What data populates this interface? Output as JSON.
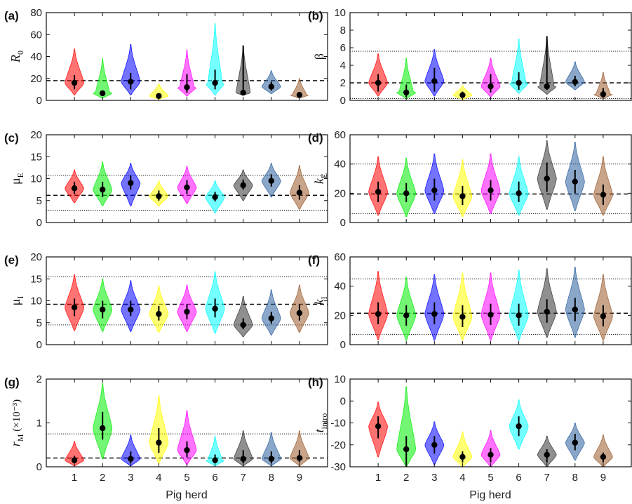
{
  "figure": {
    "xlabel": "Pig herd",
    "herd_colors": [
      "#ff0000",
      "#00ee00",
      "#0000ff",
      "#ffff00",
      "#ff00ff",
      "#00ffff",
      "#333333",
      "#2a5f9e",
      "#9a5a2a"
    ]
  },
  "chart_data": [
    {
      "panel": "(a)",
      "type": "violin",
      "ylabel": "R",
      "ylabel_sub": "0",
      "categories": [
        "1",
        "2",
        "3",
        "4",
        "5",
        "6",
        "7",
        "8",
        "9"
      ],
      "yticks": [
        0,
        20,
        40,
        60,
        80
      ],
      "ylim": [
        0,
        80
      ],
      "median": [
        16,
        6.5,
        17,
        4,
        12,
        16,
        7,
        12.5,
        5
      ],
      "ci_low": [
        10,
        4,
        10,
        2,
        7,
        10,
        6,
        9,
        3
      ],
      "ci_high": [
        23,
        9,
        25,
        6,
        24,
        28,
        50,
        17,
        7
      ],
      "vmin": [
        5,
        2,
        5,
        1,
        4,
        5,
        5,
        6,
        2
      ],
      "vmax": [
        47,
        38,
        51,
        15,
        46,
        70,
        50,
        27,
        20
      ],
      "dashed": [
        18
      ],
      "dotted": []
    },
    {
      "panel": "(b)",
      "type": "violin",
      "ylabel": "β",
      "ylabel_sub": "",
      "categories": [
        "1",
        "2",
        "3",
        "4",
        "5",
        "6",
        "7",
        "8",
        "9"
      ],
      "yticks": [
        0,
        2,
        4,
        6,
        8,
        10
      ],
      "ylim": [
        0,
        10
      ],
      "median": [
        2,
        0.9,
        2.2,
        0.6,
        1.6,
        2,
        1.6,
        2.1,
        0.7
      ],
      "ci_low": [
        1,
        0.4,
        1,
        0.3,
        0.9,
        1.2,
        1.2,
        1.6,
        0.3
      ],
      "ci_high": [
        3,
        1.8,
        3.7,
        1,
        3,
        3.2,
        7.3,
        2.8,
        1.4
      ],
      "vmin": [
        0.5,
        0.2,
        0.5,
        0.1,
        0.4,
        0.8,
        0.7,
        1.2,
        0.2
      ],
      "vmax": [
        5.3,
        4.8,
        5.8,
        1.7,
        4.8,
        7,
        7.3,
        4.4,
        3.2
      ],
      "dashed": [
        2
      ],
      "dotted": [
        5.6,
        0.2
      ]
    },
    {
      "panel": "(c)",
      "type": "violin",
      "ylabel": "μ",
      "ylabel_sub": "E",
      "categories": [
        "1",
        "2",
        "3",
        "4",
        "5",
        "6",
        "7",
        "8",
        "9"
      ],
      "yticks": [
        0,
        5,
        10,
        15,
        20
      ],
      "ylim": [
        0,
        20
      ],
      "median": [
        7.8,
        7.5,
        9,
        6,
        8,
        5.8,
        8.5,
        9.5,
        6.8
      ],
      "ci_low": [
        6.5,
        5.8,
        7.5,
        5,
        6.5,
        4.8,
        7.5,
        8.2,
        5.2
      ],
      "ci_high": [
        9.3,
        9.3,
        10.7,
        7.3,
        9.7,
        7,
        9.8,
        11,
        8.5
      ],
      "vmin": [
        4.5,
        3.8,
        3.8,
        3.8,
        4.3,
        2.2,
        5,
        5.8,
        3
      ],
      "vmax": [
        12,
        13.8,
        13.5,
        9.5,
        12.8,
        9.5,
        12,
        13.5,
        13
      ],
      "dashed": [
        6.2
      ],
      "dotted": [
        10.8,
        2.8
      ]
    },
    {
      "panel": "(d)",
      "type": "violin",
      "ylabel": "k",
      "ylabel_sub": "E",
      "categories": [
        "1",
        "2",
        "3",
        "4",
        "5",
        "6",
        "7",
        "8",
        "9"
      ],
      "yticks": [
        0,
        20,
        40,
        60
      ],
      "ylim": [
        0,
        60
      ],
      "median": [
        21,
        20,
        22,
        18,
        22,
        20,
        30,
        28,
        19
      ],
      "ci_low": [
        14,
        14,
        15,
        12,
        15,
        14,
        21,
        20,
        12
      ],
      "ci_high": [
        28,
        27,
        30,
        25,
        29,
        28,
        41,
        36,
        26
      ],
      "vmin": [
        5,
        4,
        6,
        4,
        6,
        5,
        9,
        8,
        5
      ],
      "vmax": [
        45,
        44,
        47,
        43,
        47,
        45,
        56,
        55,
        45
      ],
      "dashed": [
        19.5
      ],
      "dotted": [
        40,
        6
      ]
    },
    {
      "panel": "(e)",
      "type": "violin",
      "ylabel": "μ",
      "ylabel_sub": "I",
      "categories": [
        "1",
        "2",
        "3",
        "4",
        "5",
        "6",
        "7",
        "8",
        "9"
      ],
      "yticks": [
        0,
        5,
        10,
        15,
        20
      ],
      "ylim": [
        0,
        20
      ],
      "median": [
        8.5,
        8,
        8,
        7,
        7.5,
        8.2,
        4.5,
        6,
        7.2
      ],
      "ci_low": [
        6.5,
        6,
        6.5,
        5.5,
        5.8,
        6.2,
        3.5,
        4.8,
        5.5
      ],
      "ci_high": [
        10.5,
        10,
        10,
        8.8,
        9.2,
        10.5,
        6,
        7.5,
        9.2
      ],
      "vmin": [
        3.2,
        3,
        3,
        2.8,
        3,
        2.6,
        1.8,
        2.2,
        2.8
      ],
      "vmax": [
        16,
        15,
        14.6,
        13.4,
        13.6,
        16.6,
        11,
        12.5,
        13.6
      ],
      "dashed": [
        9.2
      ],
      "dotted": [
        15.5,
        4.5
      ]
    },
    {
      "panel": "(f)",
      "type": "violin",
      "ylabel": "k",
      "ylabel_sub": "I",
      "categories": [
        "1",
        "2",
        "3",
        "4",
        "5",
        "6",
        "7",
        "8",
        "9"
      ],
      "yticks": [
        0,
        20,
        40,
        60
      ],
      "ylim": [
        0,
        60
      ],
      "median": [
        21,
        20,
        21,
        19,
        20.5,
        20,
        22.5,
        24,
        19.5
      ],
      "ci_low": [
        14,
        13,
        14,
        12,
        13.5,
        13,
        15,
        16,
        12.5
      ],
      "ci_high": [
        29,
        27,
        29,
        27,
        28,
        28,
        31,
        32,
        27
      ],
      "vmin": [
        3.5,
        3,
        3,
        3,
        3,
        3,
        5,
        5,
        3
      ],
      "vmax": [
        50,
        46,
        48,
        49,
        49,
        51,
        52,
        53,
        48
      ],
      "dashed": [
        21.5
      ],
      "dotted": [
        45,
        7
      ]
    },
    {
      "panel": "(g)",
      "type": "violin",
      "ylabel": "r",
      "ylabel_sub": "M",
      "ylabel_extra": "(×10⁻³)",
      "categories": [
        "1",
        "2",
        "3",
        "4",
        "5",
        "6",
        "7",
        "8",
        "9"
      ],
      "yticks": [
        0,
        1,
        2
      ],
      "ylim": [
        0,
        2
      ],
      "median": [
        0.15,
        0.88,
        0.18,
        0.55,
        0.38,
        0.15,
        0.18,
        0.18,
        0.2
      ],
      "ci_low": [
        0.08,
        0.62,
        0.08,
        0.32,
        0.22,
        0.08,
        0.08,
        0.08,
        0.1
      ],
      "ci_high": [
        0.25,
        1.25,
        0.35,
        0.88,
        0.58,
        0.28,
        0.38,
        0.35,
        0.38
      ],
      "vmin": [
        0.02,
        0.18,
        0.02,
        0.08,
        0.05,
        0.02,
        0.02,
        0.02,
        0.02
      ],
      "vmax": [
        0.58,
        1.9,
        0.72,
        1.62,
        1.28,
        0.7,
        0.82,
        0.78,
        0.82
      ],
      "dashed": [
        0.2
      ],
      "dotted": [
        0.75
      ]
    },
    {
      "panel": "(h)",
      "type": "violin",
      "ylabel": "t",
      "ylabel_sub": "intro",
      "categories": [
        "1",
        "2",
        "3",
        "4",
        "5",
        "6",
        "7",
        "8",
        "9"
      ],
      "yticks": [
        -30,
        -20,
        -10,
        0,
        10
      ],
      "ylim": [
        -30,
        10
      ],
      "median": [
        -11.5,
        -22,
        -20,
        -25.5,
        -24.5,
        -11.5,
        -24.5,
        -19,
        -25.5
      ],
      "ci_low": [
        -17,
        -30,
        -24,
        -28,
        -28,
        -16,
        -28,
        -22.5,
        -28
      ],
      "ci_high": [
        -7,
        -16,
        -16,
        -23,
        -21.5,
        -7,
        -22,
        -15,
        -23.5
      ],
      "vmin": [
        -25.5,
        -30,
        -29,
        -30,
        -30,
        -22,
        -30,
        -27,
        -30
      ],
      "vmax": [
        -0.5,
        6.5,
        -9.5,
        -14,
        -13.5,
        0.5,
        -16,
        -10,
        -15.5
      ],
      "dashed": [],
      "dotted": []
    }
  ]
}
